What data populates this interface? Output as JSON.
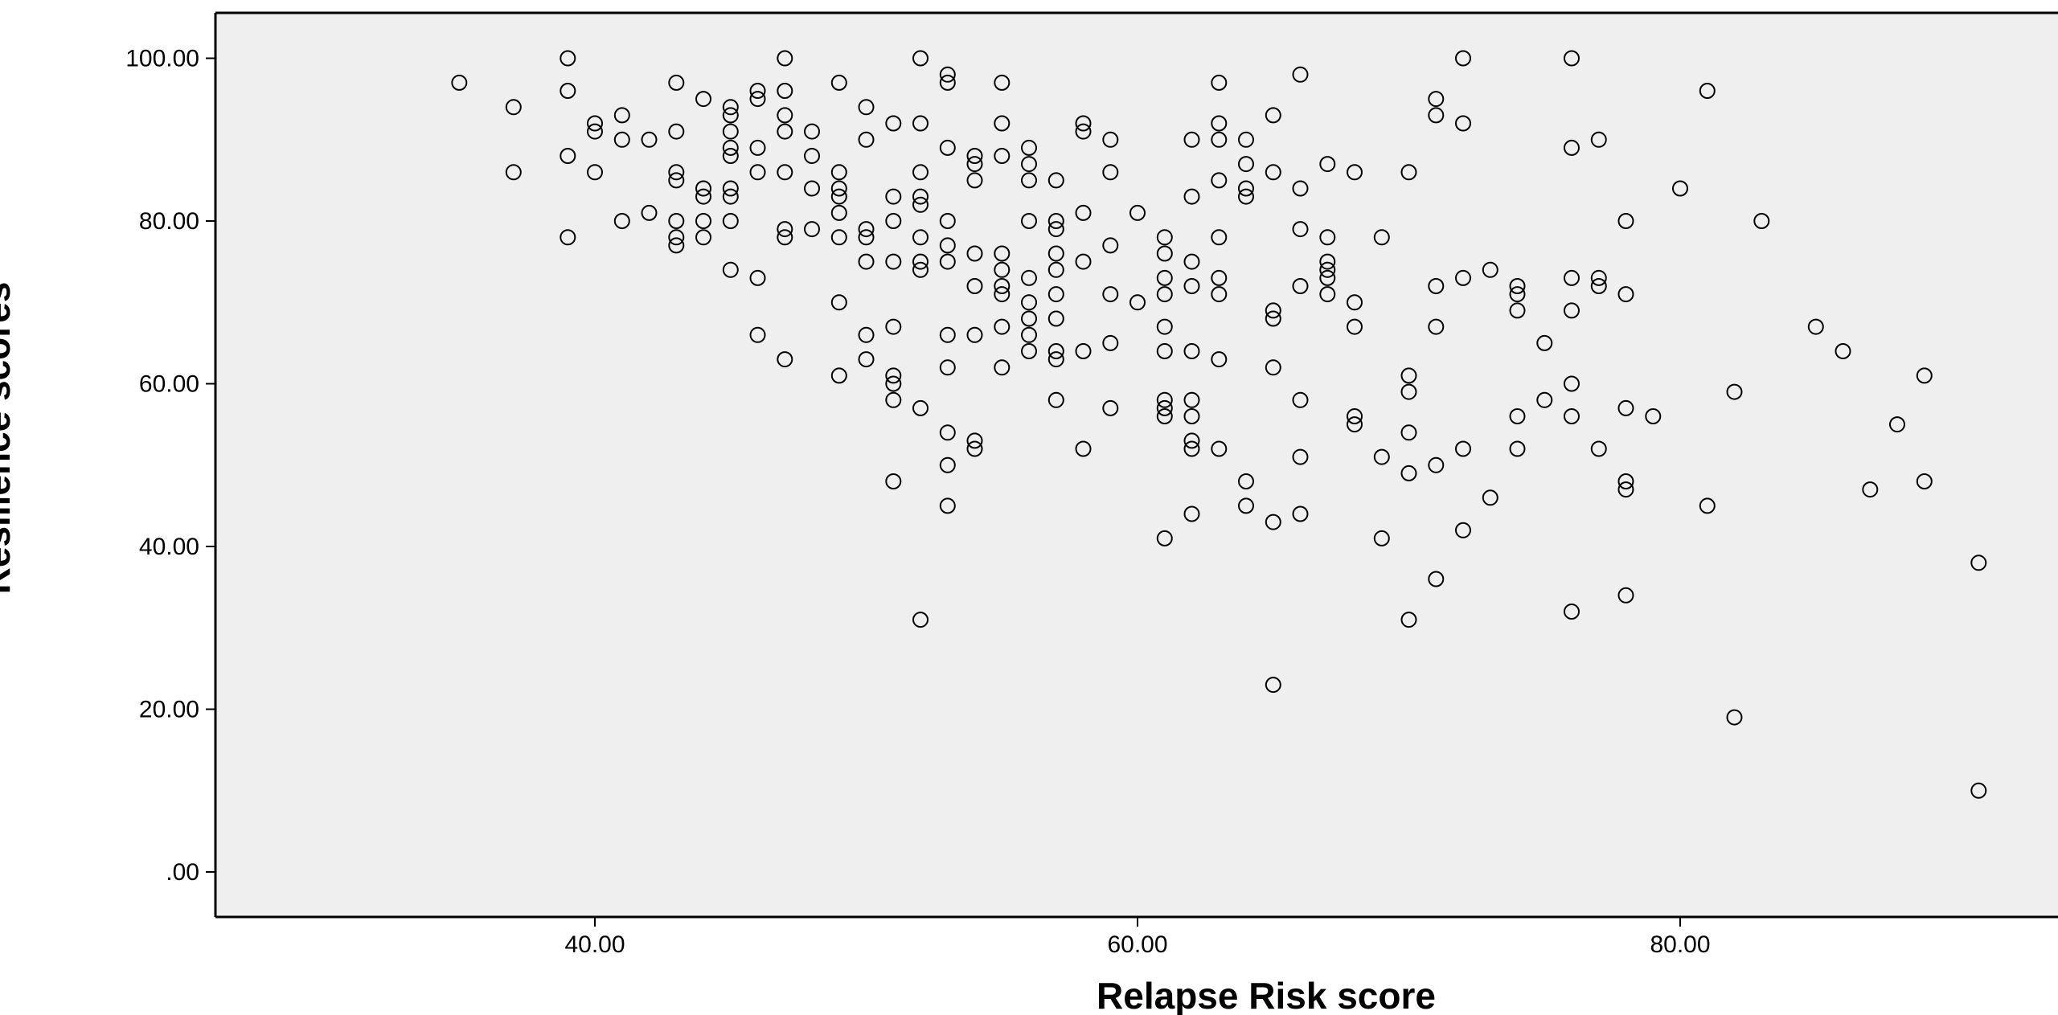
{
  "chart_data": {
    "type": "scatter",
    "title": "",
    "xlabel": "Relapse Risk score",
    "ylabel": "Resilience scores",
    "xlim": [
      26,
      93
    ],
    "ylim": [
      -5,
      104
    ],
    "xticks": [
      40,
      60,
      80
    ],
    "xtick_labels": [
      "40.00",
      "60.00",
      "80.00"
    ],
    "yticks": [
      0,
      20,
      40,
      60,
      80,
      100
    ],
    "ytick_labels": [
      ".00",
      "20.00",
      "40.00",
      "60.00",
      "80.00",
      "100.00"
    ],
    "grid": false,
    "marker": "open-circle",
    "colors": {
      "plot_background": "#efefef",
      "marker_stroke": "#000000",
      "axis": "#000000"
    },
    "points": [
      [
        35,
        97
      ],
      [
        37,
        94
      ],
      [
        37,
        86
      ],
      [
        39,
        100
      ],
      [
        39,
        96
      ],
      [
        39,
        88
      ],
      [
        39,
        78
      ],
      [
        40,
        92
      ],
      [
        40,
        91
      ],
      [
        40,
        86
      ],
      [
        41,
        93
      ],
      [
        41,
        90
      ],
      [
        41,
        80
      ],
      [
        42,
        90
      ],
      [
        42,
        81
      ],
      [
        43,
        97
      ],
      [
        43,
        91
      ],
      [
        43,
        86
      ],
      [
        43,
        85
      ],
      [
        43,
        80
      ],
      [
        43,
        78
      ],
      [
        43,
        77
      ],
      [
        44,
        95
      ],
      [
        44,
        84
      ],
      [
        44,
        83
      ],
      [
        44,
        80
      ],
      [
        44,
        78
      ],
      [
        45,
        94
      ],
      [
        45,
        93
      ],
      [
        45,
        91
      ],
      [
        45,
        89
      ],
      [
        45,
        88
      ],
      [
        45,
        84
      ],
      [
        45,
        83
      ],
      [
        45,
        80
      ],
      [
        45,
        74
      ],
      [
        46,
        96
      ],
      [
        46,
        95
      ],
      [
        46,
        89
      ],
      [
        46,
        86
      ],
      [
        46,
        73
      ],
      [
        46,
        66
      ],
      [
        47,
        100
      ],
      [
        47,
        96
      ],
      [
        47,
        93
      ],
      [
        47,
        91
      ],
      [
        47,
        86
      ],
      [
        47,
        79
      ],
      [
        47,
        78
      ],
      [
        47,
        63
      ],
      [
        48,
        91
      ],
      [
        48,
        88
      ],
      [
        48,
        84
      ],
      [
        48,
        79
      ],
      [
        49,
        97
      ],
      [
        49,
        86
      ],
      [
        49,
        84
      ],
      [
        49,
        83
      ],
      [
        49,
        81
      ],
      [
        49,
        78
      ],
      [
        49,
        70
      ],
      [
        49,
        61
      ],
      [
        50,
        94
      ],
      [
        50,
        90
      ],
      [
        50,
        79
      ],
      [
        50,
        78
      ],
      [
        50,
        75
      ],
      [
        50,
        66
      ],
      [
        50,
        63
      ],
      [
        51,
        92
      ],
      [
        51,
        83
      ],
      [
        51,
        80
      ],
      [
        51,
        75
      ],
      [
        51,
        67
      ],
      [
        51,
        61
      ],
      [
        51,
        60
      ],
      [
        51,
        58
      ],
      [
        51,
        48
      ],
      [
        52,
        100
      ],
      [
        52,
        92
      ],
      [
        52,
        86
      ],
      [
        52,
        83
      ],
      [
        52,
        82
      ],
      [
        52,
        78
      ],
      [
        52,
        75
      ],
      [
        52,
        74
      ],
      [
        52,
        57
      ],
      [
        52,
        31
      ],
      [
        53,
        98
      ],
      [
        53,
        97
      ],
      [
        53,
        89
      ],
      [
        53,
        80
      ],
      [
        53,
        77
      ],
      [
        53,
        75
      ],
      [
        53,
        66
      ],
      [
        53,
        62
      ],
      [
        53,
        54
      ],
      [
        53,
        50
      ],
      [
        53,
        45
      ],
      [
        54,
        88
      ],
      [
        54,
        87
      ],
      [
        54,
        85
      ],
      [
        54,
        76
      ],
      [
        54,
        72
      ],
      [
        54,
        66
      ],
      [
        54,
        53
      ],
      [
        54,
        52
      ],
      [
        55,
        97
      ],
      [
        55,
        92
      ],
      [
        55,
        88
      ],
      [
        55,
        76
      ],
      [
        55,
        74
      ],
      [
        55,
        72
      ],
      [
        55,
        71
      ],
      [
        55,
        67
      ],
      [
        55,
        62
      ],
      [
        56,
        89
      ],
      [
        56,
        87
      ],
      [
        56,
        85
      ],
      [
        56,
        80
      ],
      [
        56,
        73
      ],
      [
        56,
        70
      ],
      [
        56,
        68
      ],
      [
        56,
        66
      ],
      [
        56,
        64
      ],
      [
        57,
        85
      ],
      [
        57,
        80
      ],
      [
        57,
        79
      ],
      [
        57,
        76
      ],
      [
        57,
        74
      ],
      [
        57,
        71
      ],
      [
        57,
        68
      ],
      [
        57,
        64
      ],
      [
        57,
        63
      ],
      [
        57,
        58
      ],
      [
        58,
        92
      ],
      [
        58,
        91
      ],
      [
        58,
        81
      ],
      [
        58,
        75
      ],
      [
        58,
        64
      ],
      [
        58,
        52
      ],
      [
        59,
        90
      ],
      [
        59,
        86
      ],
      [
        59,
        77
      ],
      [
        59,
        71
      ],
      [
        59,
        65
      ],
      [
        59,
        57
      ],
      [
        60,
        81
      ],
      [
        60,
        70
      ],
      [
        61,
        78
      ],
      [
        61,
        76
      ],
      [
        61,
        73
      ],
      [
        61,
        71
      ],
      [
        61,
        67
      ],
      [
        61,
        64
      ],
      [
        61,
        58
      ],
      [
        61,
        57
      ],
      [
        61,
        56
      ],
      [
        61,
        41
      ],
      [
        62,
        90
      ],
      [
        62,
        83
      ],
      [
        62,
        75
      ],
      [
        62,
        72
      ],
      [
        62,
        64
      ],
      [
        62,
        58
      ],
      [
        62,
        56
      ],
      [
        62,
        53
      ],
      [
        62,
        52
      ],
      [
        62,
        44
      ],
      [
        63,
        97
      ],
      [
        63,
        92
      ],
      [
        63,
        90
      ],
      [
        63,
        85
      ],
      [
        63,
        78
      ],
      [
        63,
        73
      ],
      [
        63,
        71
      ],
      [
        63,
        63
      ],
      [
        63,
        52
      ],
      [
        64,
        90
      ],
      [
        64,
        87
      ],
      [
        64,
        84
      ],
      [
        64,
        83
      ],
      [
        64,
        48
      ],
      [
        64,
        45
      ],
      [
        65,
        93
      ],
      [
        65,
        86
      ],
      [
        65,
        69
      ],
      [
        65,
        68
      ],
      [
        65,
        62
      ],
      [
        65,
        43
      ],
      [
        65,
        23
      ],
      [
        66,
        98
      ],
      [
        66,
        84
      ],
      [
        66,
        79
      ],
      [
        66,
        72
      ],
      [
        66,
        58
      ],
      [
        66,
        51
      ],
      [
        66,
        44
      ],
      [
        67,
        87
      ],
      [
        67,
        78
      ],
      [
        67,
        75
      ],
      [
        67,
        74
      ],
      [
        67,
        73
      ],
      [
        67,
        71
      ],
      [
        68,
        86
      ],
      [
        68,
        70
      ],
      [
        68,
        67
      ],
      [
        68,
        56
      ],
      [
        68,
        55
      ],
      [
        69,
        78
      ],
      [
        69,
        51
      ],
      [
        69,
        41
      ],
      [
        70,
        86
      ],
      [
        70,
        61
      ],
      [
        70,
        59
      ],
      [
        70,
        54
      ],
      [
        70,
        49
      ],
      [
        70,
        31
      ],
      [
        71,
        95
      ],
      [
        71,
        93
      ],
      [
        71,
        72
      ],
      [
        71,
        67
      ],
      [
        71,
        50
      ],
      [
        71,
        36
      ],
      [
        72,
        100
      ],
      [
        72,
        92
      ],
      [
        72,
        73
      ],
      [
        72,
        52
      ],
      [
        72,
        42
      ],
      [
        73,
        74
      ],
      [
        73,
        46
      ],
      [
        74,
        72
      ],
      [
        74,
        71
      ],
      [
        74,
        69
      ],
      [
        74,
        56
      ],
      [
        74,
        52
      ],
      [
        75,
        65
      ],
      [
        75,
        58
      ],
      [
        76,
        100
      ],
      [
        76,
        89
      ],
      [
        76,
        73
      ],
      [
        76,
        69
      ],
      [
        76,
        60
      ],
      [
        76,
        56
      ],
      [
        76,
        32
      ],
      [
        77,
        90
      ],
      [
        77,
        73
      ],
      [
        77,
        72
      ],
      [
        77,
        52
      ],
      [
        78,
        80
      ],
      [
        78,
        71
      ],
      [
        78,
        57
      ],
      [
        78,
        48
      ],
      [
        78,
        47
      ],
      [
        78,
        34
      ],
      [
        79,
        56
      ],
      [
        80,
        84
      ],
      [
        81,
        96
      ],
      [
        81,
        45
      ],
      [
        82,
        59
      ],
      [
        82,
        19
      ],
      [
        83,
        80
      ],
      [
        85,
        67
      ],
      [
        86,
        64
      ],
      [
        87,
        47
      ],
      [
        88,
        55
      ],
      [
        89,
        61
      ],
      [
        89,
        48
      ],
      [
        91,
        38
      ],
      [
        91,
        10
      ]
    ]
  }
}
